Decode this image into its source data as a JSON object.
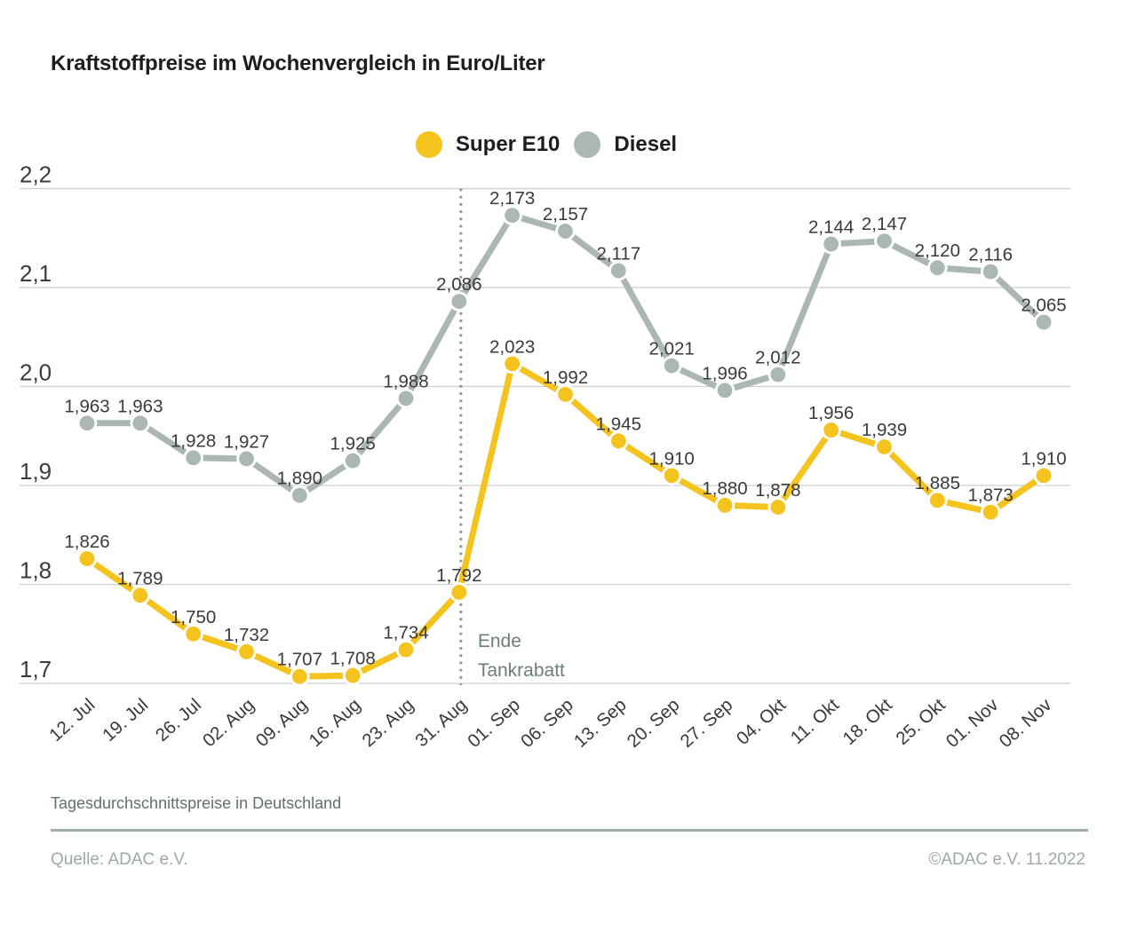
{
  "header": {
    "title": "Kraftstoffpreise im Wochenvergleich in Euro/Liter"
  },
  "legend": [
    {
      "label": "Super E10",
      "color": "#F5C31D"
    },
    {
      "label": "Diesel",
      "color": "#AAB7B2"
    }
  ],
  "chart_data": {
    "type": "line",
    "title": "Kraftstoffpreise im Wochenvergleich in Euro/Liter",
    "xlabel": "",
    "ylabel": "Euro/Liter",
    "ylim": [
      1.7,
      2.2
    ],
    "ytick_step": 0.1,
    "grid": true,
    "legend_position": "top-center",
    "categories": [
      "12. Jul",
      "19. Jul",
      "26. Jul",
      "02. Aug",
      "09. Aug",
      "16. Aug",
      "23. Aug",
      "31. Aug",
      "01. Sep",
      "06. Sep",
      "13. Sep",
      "20. Sep",
      "27. Sep",
      "04. Okt",
      "11. Okt",
      "18. Okt",
      "25. Okt",
      "01. Nov",
      "08. Nov"
    ],
    "yticks": [
      {
        "value": 1.7,
        "label": "1,7"
      },
      {
        "value": 1.8,
        "label": "1,8"
      },
      {
        "value": 1.9,
        "label": "1,9"
      },
      {
        "value": 2.0,
        "label": "2,0"
      },
      {
        "value": 2.1,
        "label": "2,1"
      },
      {
        "value": 2.2,
        "label": "2,2"
      }
    ],
    "series": [
      {
        "name": "Diesel",
        "color": "#AAB7B2",
        "values": [
          1.963,
          1.963,
          1.928,
          1.927,
          1.89,
          1.925,
          1.988,
          2.086,
          2.173,
          2.157,
          2.117,
          2.021,
          1.996,
          2.012,
          2.144,
          2.147,
          2.12,
          2.116,
          2.065
        ],
        "labels": [
          "1,963",
          "1,963",
          "1,928",
          "1,927",
          "1,890",
          "1,925",
          "1,988",
          "2,086",
          "2,173",
          "2,157",
          "2,117",
          "2,021",
          "1,996",
          "2,012",
          "2,144",
          "2,147",
          "2,120",
          "2,116",
          "2,065"
        ]
      },
      {
        "name": "Super E10",
        "color": "#F5C31D",
        "values": [
          1.826,
          1.789,
          1.75,
          1.732,
          1.707,
          1.708,
          1.734,
          1.792,
          2.023,
          1.992,
          1.945,
          1.91,
          1.88,
          1.878,
          1.956,
          1.939,
          1.885,
          1.873,
          1.91
        ],
        "labels": [
          "1,826",
          "1,789",
          "1,750",
          "1,732",
          "1,707",
          "1,708",
          "1,734",
          "1,792",
          "2,023",
          "1,992",
          "1,945",
          "1,910",
          "1,880",
          "1,878",
          "1,956",
          "1,939",
          "1,885",
          "1,873",
          "1,910"
        ]
      }
    ],
    "annotation": {
      "x_category": "31. Aug",
      "lines": [
        "Ende",
        "Tankrabatt"
      ],
      "color": "#6c7e79"
    }
  },
  "colors": {
    "gridline": "#cbd1cf",
    "dotted_line": "#8c9995",
    "ytick_text": "#3c3c3b",
    "xtick_text": "#343b3a",
    "data_label": "#3a3a39"
  },
  "footer": {
    "note": "Tagesdurchschnittspreise in Deutschland",
    "source": "Quelle: ADAC e.V.",
    "copyright": "©ADAC e.V.  11.2022"
  }
}
